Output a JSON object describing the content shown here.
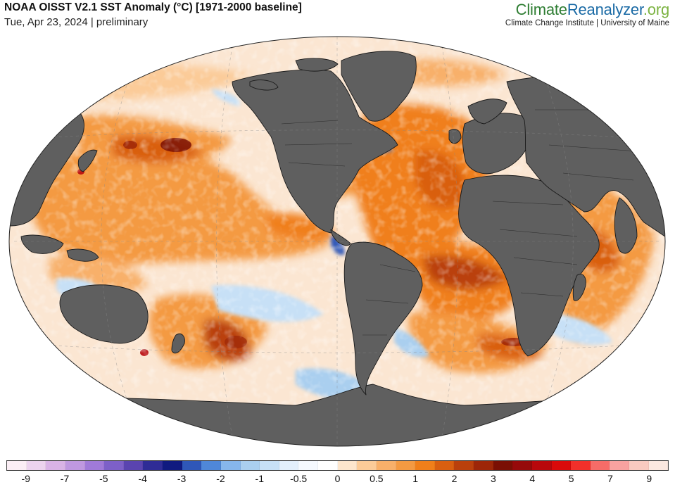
{
  "header": {
    "title": "NOAA OISST V2.1 SST Anomaly (°C) [1971-2000 baseline]",
    "subtitle": "Tue, Apr 23, 2024 | preliminary"
  },
  "brand": {
    "part1": "Climate",
    "part2": "Reanalyzer",
    "part3": ".org",
    "tagline": "Climate Change Institute | University of Maine"
  },
  "map": {
    "projection": "Winkel-type world ellipse",
    "land_color": "#5f5f5f",
    "ocean_warm_color": "#f58a2c",
    "ocean_neutral_color": "#ffffff",
    "ocean_cool_color": "#b3d3f2"
  },
  "legend": {
    "colors": [
      "#fbeef5",
      "#ecd3ee",
      "#d9b3e6",
      "#bf98e0",
      "#a07ad8",
      "#7d60c8",
      "#5a44b0",
      "#2f2c96",
      "#101a80",
      "#2f57b8",
      "#4f87d8",
      "#86b6ec",
      "#aacfef",
      "#c7e0f6",
      "#e3effb",
      "#f5f9fe",
      "#ffffff",
      "#fde6cd",
      "#fbcb98",
      "#f8b06a",
      "#f49a42",
      "#f07f1a",
      "#d95f10",
      "#ba400c",
      "#9d2608",
      "#7a0f04",
      "#960a0a",
      "#b8080c",
      "#da0a0a",
      "#f2302a",
      "#f66c68",
      "#f8a2a0",
      "#f9cac0",
      "#fbe8e0"
    ],
    "ticks": [
      "-9",
      "-7",
      "-5",
      "-4",
      "-3",
      "-2",
      "-1",
      "-0.5",
      "0",
      "0.5",
      "1",
      "2",
      "3",
      "4",
      "5",
      "7",
      "9"
    ]
  }
}
